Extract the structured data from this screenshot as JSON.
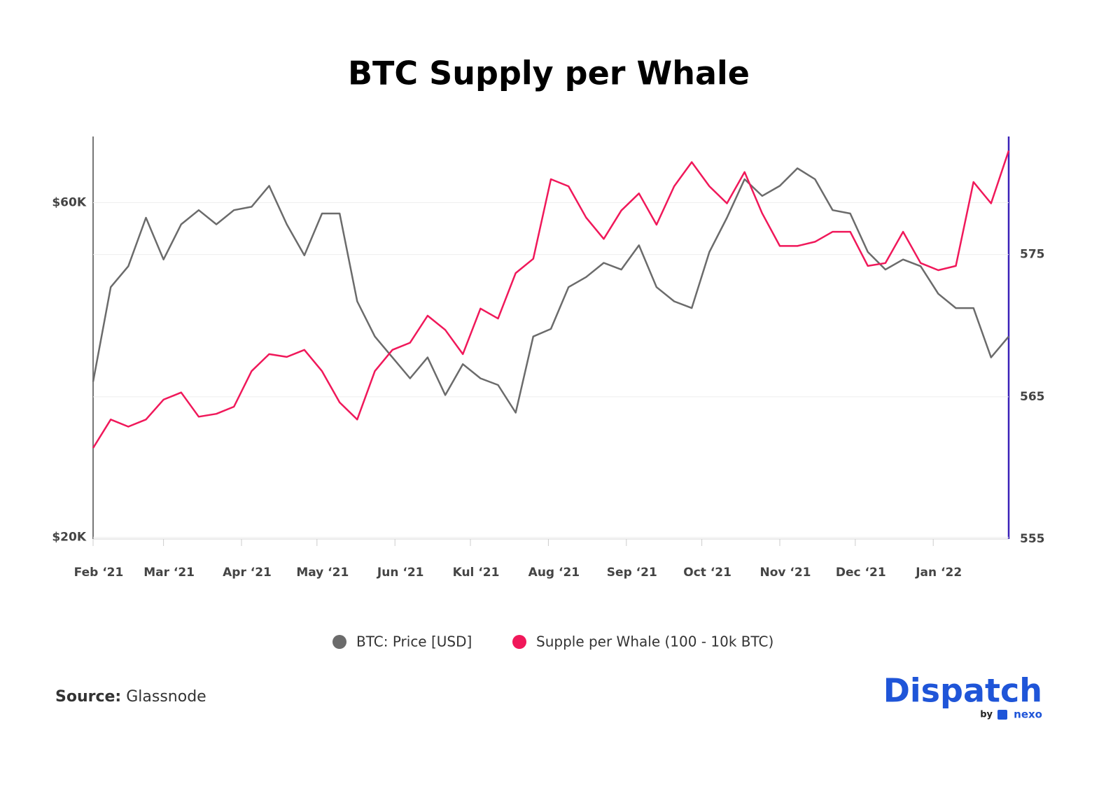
{
  "chart_data": {
    "type": "line",
    "title": "BTC Supply per Whale",
    "x": [
      0,
      7,
      14,
      21,
      28,
      35,
      42,
      49,
      56,
      63,
      70,
      77,
      84,
      91,
      98,
      105,
      112,
      119,
      126,
      133,
      140,
      147,
      154,
      161,
      168,
      175,
      182,
      189,
      196,
      203,
      210,
      217,
      224,
      231,
      238,
      245,
      252,
      259,
      266,
      273,
      280,
      287,
      294,
      301,
      308,
      315,
      322,
      329,
      336,
      343,
      350,
      357,
      364
    ],
    "xlim": [
      0,
      364
    ],
    "xticks": [
      {
        "value": 0,
        "label": "Feb ‘21"
      },
      {
        "value": 28,
        "label": "Mar ‘21"
      },
      {
        "value": 59,
        "label": "Apr ‘21"
      },
      {
        "value": 89,
        "label": "May ‘21"
      },
      {
        "value": 120,
        "label": "Jun ‘21"
      },
      {
        "value": 150,
        "label": "Kul ‘21"
      },
      {
        "value": 181,
        "label": "Aug ‘21"
      },
      {
        "value": 212,
        "label": "Sep ‘21"
      },
      {
        "value": 242,
        "label": "Oct ‘21"
      },
      {
        "value": 273,
        "label": "Nov ‘21"
      },
      {
        "value": 303,
        "label": "Dec ‘21"
      },
      {
        "value": 334,
        "label": "Jan ‘22"
      }
    ],
    "ylim": [
      19800,
      67900
    ],
    "yticks": [
      {
        "value": 20000,
        "label": "$20K"
      },
      {
        "value": 60000,
        "label": "$60K"
      }
    ],
    "y2lim": [
      555,
      583.3
    ],
    "y2ticks": [
      555,
      565,
      575
    ],
    "grid": true,
    "series": [
      {
        "name": "BTC: Price [USD]",
        "color": "#6b6b6b",
        "values": [
          38600,
          49900,
          52400,
          58200,
          53200,
          57400,
          59100,
          57400,
          59100,
          59500,
          62000,
          57400,
          53700,
          58700,
          58700,
          48200,
          44000,
          41500,
          39000,
          41500,
          37000,
          40700,
          39000,
          38200,
          34900,
          44000,
          44900,
          49900,
          51100,
          52800,
          52000,
          54900,
          49900,
          48200,
          47400,
          54100,
          58200,
          62800,
          60800,
          62000,
          64100,
          62800,
          59100,
          58700,
          54100,
          52000,
          53200,
          52400,
          49100,
          47400,
          47400,
          41500,
          44000
        ]
      },
      {
        "name": "Supple per Whale (100 - 10k BTC)",
        "color": "#f0185a",
        "axis": "y2",
        "values": [
          561.4,
          563.4,
          562.9,
          563.4,
          564.8,
          565.3,
          563.6,
          563.8,
          564.3,
          566.8,
          568.0,
          567.8,
          568.3,
          566.8,
          564.6,
          563.4,
          566.8,
          568.3,
          568.8,
          570.7,
          569.7,
          568.0,
          571.2,
          570.5,
          573.7,
          574.7,
          580.3,
          579.8,
          577.6,
          576.1,
          578.1,
          579.3,
          577.1,
          579.8,
          581.5,
          579.8,
          578.6,
          580.8,
          577.9,
          575.6,
          575.6,
          575.9,
          576.6,
          576.6,
          574.2,
          574.4,
          576.6,
          574.4,
          573.9,
          574.2,
          580.1,
          578.6,
          582.3
        ]
      }
    ]
  },
  "footer": {
    "source_label": "Source:",
    "source": "Glassnode",
    "brand": "Dispatch",
    "by": "by",
    "brand_sub": "nexo"
  }
}
